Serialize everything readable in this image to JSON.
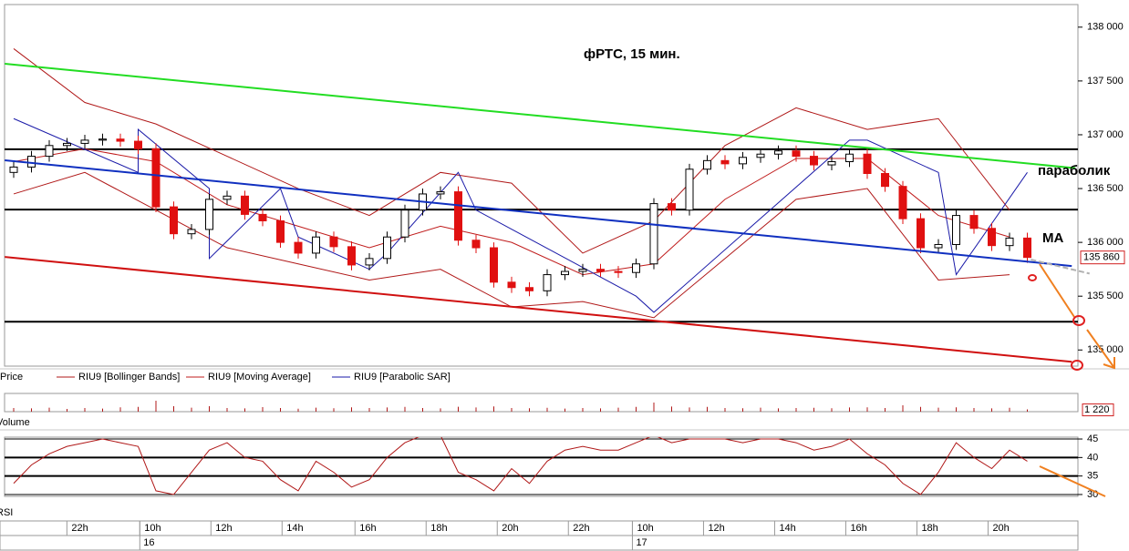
{
  "chart_data": [
    {
      "type": "candlestick",
      "title": "фРТС,  15 мин.",
      "name": "Price",
      "up_color": "#ffffff",
      "down_color": "#e01010",
      "open": [
        136650,
        136700,
        136800,
        136900,
        136920,
        136950,
        136960,
        136940,
        136870,
        136330,
        136080,
        136120,
        136400,
        136430,
        136260,
        136200,
        136000,
        135900,
        136050,
        135960,
        135790,
        135850,
        136050,
        136300,
        136450,
        136470,
        136020,
        135950,
        135630,
        135580,
        135550,
        135700,
        135730,
        135750,
        135730,
        135720,
        135800,
        136360,
        136300,
        136680,
        136760,
        136730,
        136790,
        136820,
        136850,
        136800,
        136720,
        136750,
        136820,
        136640,
        136520,
        136220,
        135950,
        135980,
        136250,
        136130,
        135970,
        136040
      ],
      "high": [
        136750,
        136850,
        136950,
        136970,
        137000,
        137010,
        137010,
        136990,
        136920,
        136380,
        136170,
        136450,
        136480,
        136480,
        136310,
        136250,
        136050,
        136100,
        136100,
        136010,
        135900,
        136100,
        136350,
        136500,
        136520,
        136520,
        136070,
        136000,
        135680,
        135630,
        135750,
        135780,
        135800,
        135800,
        135780,
        135850,
        136410,
        136410,
        136730,
        136810,
        136810,
        136840,
        136870,
        136900,
        136900,
        136850,
        136800,
        136870,
        136870,
        136690,
        136570,
        136270,
        136030,
        136300,
        136300,
        136180,
        136090,
        136090
      ],
      "low": [
        136600,
        136650,
        136750,
        136850,
        136870,
        136900,
        136890,
        136820,
        136280,
        136030,
        136030,
        136070,
        136350,
        136210,
        136150,
        135950,
        135850,
        135850,
        135910,
        135740,
        135740,
        135800,
        136000,
        136250,
        136400,
        135970,
        135900,
        135580,
        135530,
        135500,
        135500,
        135650,
        135680,
        135680,
        135670,
        135670,
        135750,
        136250,
        136250,
        136630,
        136680,
        136680,
        136740,
        136770,
        136750,
        136670,
        136670,
        136700,
        136590,
        136470,
        136170,
        135900,
        135900,
        135930,
        136080,
        135920,
        135920,
        135810
      ],
      "close": [
        136700,
        136800,
        136900,
        136920,
        136950,
        136960,
        136940,
        136870,
        136330,
        136080,
        136120,
        136400,
        136430,
        136260,
        136200,
        136000,
        135900,
        136050,
        135960,
        135790,
        135850,
        136050,
        136300,
        136450,
        136470,
        136020,
        135950,
        135630,
        135580,
        135550,
        135700,
        135730,
        135750,
        135730,
        135720,
        135800,
        136360,
        136300,
        136680,
        136760,
        136730,
        136790,
        136820,
        136850,
        136800,
        136720,
        136750,
        136820,
        136640,
        136520,
        136220,
        135950,
        135980,
        136250,
        136130,
        135970,
        136040,
        135860
      ],
      "last_price": {
        "value": 135860,
        "label": "135 860"
      },
      "bollinger": {
        "name": "RIU9 [Bollinger Bands]",
        "color": "#b01818",
        "x": [
          0,
          4,
          8,
          12,
          16,
          20,
          24,
          28,
          32,
          36,
          40,
          44,
          48,
          52,
          56
        ],
        "upper": [
          137800,
          137300,
          137100,
          136800,
          136500,
          136250,
          136650,
          136550,
          135900,
          136200,
          136900,
          137250,
          137050,
          137150,
          136300
        ],
        "lower": [
          136450,
          136650,
          136300,
          135950,
          135800,
          135650,
          135750,
          135400,
          135450,
          135300,
          135850,
          136400,
          136500,
          135650,
          135700
        ]
      },
      "moving_average": {
        "name": "RIU9 [Moving Average]",
        "color": "#c01c1c",
        "x": [
          0,
          4,
          8,
          12,
          16,
          20,
          24,
          28,
          32,
          36,
          40,
          44,
          48,
          52,
          56
        ],
        "values": [
          136750,
          136870,
          136750,
          136350,
          136150,
          135950,
          136150,
          136000,
          135700,
          135800,
          136400,
          136780,
          136780,
          136250,
          136050
        ]
      },
      "sar": {
        "name": "RIU9 [Parabolic SAR]",
        "color": "#1a1aa8",
        "x": [
          0,
          7,
          7,
          11,
          11,
          15,
          16,
          20,
          21,
          25,
          26,
          35,
          36,
          47,
          48,
          52,
          53,
          57
        ],
        "values": [
          137150,
          136650,
          137050,
          136500,
          135850,
          136500,
          136050,
          135750,
          135900,
          136650,
          136300,
          135500,
          135350,
          136950,
          136950,
          136650,
          135700,
          136650
        ]
      },
      "levels": [
        136865,
        136305,
        135263
      ],
      "trend_lines": [
        {
          "color": "#22dd22",
          "x": [
            -0.5,
            59.7
          ],
          "values": [
            137660,
            136690
          ]
        },
        {
          "color": "#1030c0",
          "x": [
            -0.5,
            59.5
          ],
          "values": [
            136763,
            135780
          ]
        },
        {
          "color": "#d01010",
          "x": [
            -0.5,
            59.5
          ],
          "values": [
            135865,
            134890
          ]
        },
        {
          "color": "#b0b0b0",
          "x": [
            57.2,
            60.5
          ],
          "values": [
            135840,
            135710
          ]
        }
      ],
      "annotations": [
        "параболик",
        "МА"
      ],
      "ylim": [
        134850,
        138210
      ],
      "yticks": [
        {
          "value": 135000,
          "label": "135 000"
        },
        {
          "value": 135500,
          "label": "135 500"
        },
        {
          "value": 136000,
          "label": "136 000"
        },
        {
          "value": 136500,
          "label": "136 500"
        },
        {
          "value": 137000,
          "label": "137 000"
        },
        {
          "value": 137500,
          "label": "137 500"
        },
        {
          "value": 138000,
          "label": "138 000"
        }
      ]
    },
    {
      "type": "bar",
      "name": "Volume",
      "color": "#b01818",
      "values": [
        2000,
        1800,
        2200,
        1500,
        2000,
        1700,
        2400,
        2600,
        6000,
        3000,
        2200,
        3000,
        2000,
        1800,
        2500,
        2000,
        1600,
        2200,
        1900,
        2400,
        2000,
        2300,
        2600,
        2000,
        1800,
        2700,
        2300,
        2900,
        2000,
        1900,
        2100,
        1700,
        2000,
        1800,
        2200,
        2600,
        5000,
        2800,
        2300,
        2600,
        2000,
        1900,
        2200,
        1800,
        2000,
        2100,
        1900,
        2300,
        2400,
        2000,
        3500,
        2600,
        2200,
        2400,
        2000,
        1800,
        2100,
        1220
      ],
      "last_value": {
        "value": 1220,
        "label": "1 220"
      },
      "ylim": [
        0,
        10000
      ]
    },
    {
      "type": "line",
      "name": "RSI",
      "color": "#b01818",
      "values": [
        33,
        38,
        41,
        43,
        44,
        45,
        44,
        43,
        31,
        30,
        36,
        42,
        44,
        40,
        39,
        34,
        31,
        39,
        36,
        32,
        34,
        40,
        44,
        46,
        46,
        36,
        34,
        31,
        37,
        33,
        39,
        42,
        43,
        42,
        42,
        44,
        46,
        44,
        45,
        45,
        45,
        44,
        45,
        45,
        44,
        42,
        43,
        45,
        41,
        38,
        33,
        30,
        36,
        44,
        40,
        37,
        42,
        39
      ],
      "levels": [
        40,
        35
      ],
      "ylim": [
        29.5,
        45.5
      ],
      "yticks": [
        45,
        40,
        35,
        30
      ]
    }
  ],
  "time_axis": {
    "xticks": [
      {
        "value": 3.3,
        "label": "22h"
      },
      {
        "value": 7.4,
        "label": "10h"
      },
      {
        "value": 11.4,
        "label": "12h"
      },
      {
        "value": 15.4,
        "label": "14h"
      },
      {
        "value": 19.5,
        "label": "16h"
      },
      {
        "value": 23.5,
        "label": "18h"
      },
      {
        "value": 27.5,
        "label": "20h"
      },
      {
        "value": 31.5,
        "label": "22h"
      },
      {
        "value": 35.1,
        "label": "10h"
      },
      {
        "value": 39.1,
        "label": "12h"
      },
      {
        "value": 43.1,
        "label": "14h"
      },
      {
        "value": 47.1,
        "label": "16h"
      },
      {
        "value": 51.1,
        "label": "18h"
      },
      {
        "value": 55.1,
        "label": "20h"
      }
    ],
    "days": [
      {
        "value": 7.4,
        "label": "16"
      },
      {
        "value": 35.1,
        "label": "17"
      }
    ]
  }
}
